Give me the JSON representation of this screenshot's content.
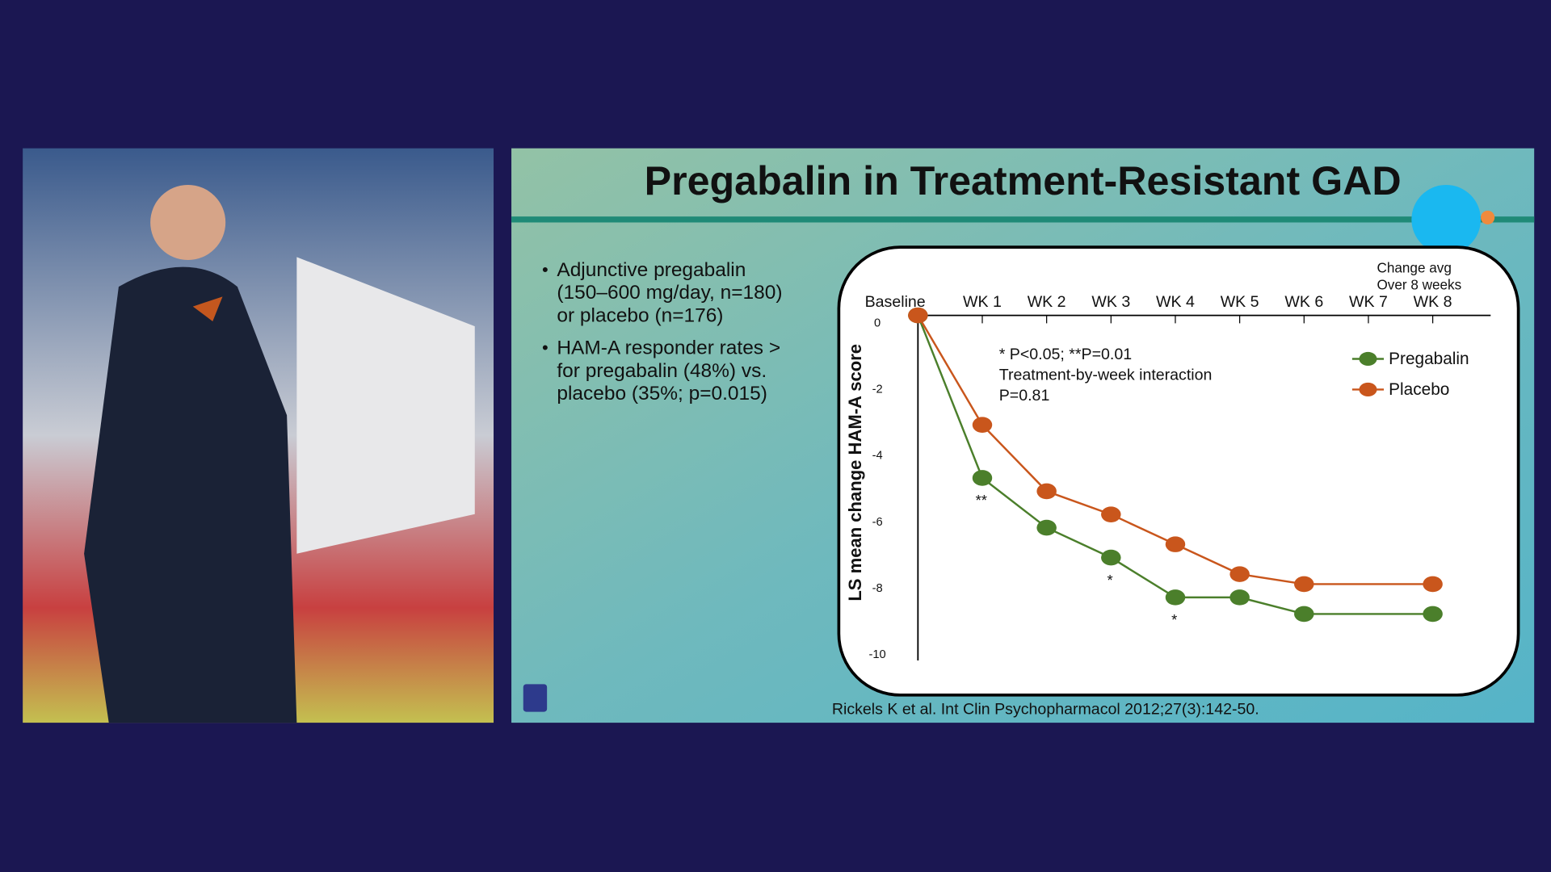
{
  "slide": {
    "title": "Pregabalin in Treatment-Resistant GAD",
    "bullets": [
      [
        "Adjunctive pregabalin",
        "(150–600 mg/day, n=180)",
        "or placebo (n=176)"
      ],
      [
        "HAM-A responder rates >",
        "for pregabalin (48%) vs.",
        "placebo (35%; p=0.015)"
      ]
    ],
    "citation": "Rickels K et al. Int Clin Psychopharmacol 2012;27(3):142-50."
  },
  "chart_data": {
    "type": "line",
    "y_label": "LS mean change HAM-A score",
    "x": [
      0,
      1,
      2,
      3,
      4,
      5,
      6,
      8
    ],
    "xlim": [
      0,
      8.9
    ],
    "xticks": [
      {
        "value": 0,
        "label": "Baseline"
      },
      {
        "value": 1,
        "label": "WK 1"
      },
      {
        "value": 2,
        "label": "WK 2"
      },
      {
        "value": 3,
        "label": "WK 3"
      },
      {
        "value": 4,
        "label": "WK 4"
      },
      {
        "value": 5,
        "label": "WK 5"
      },
      {
        "value": 6,
        "label": "WK 6"
      },
      {
        "value": 7,
        "label": "WK 7"
      },
      {
        "value": 8,
        "label": "WK 8"
      }
    ],
    "ylim": [
      -10.4,
      0
    ],
    "yticks": [
      0,
      -2,
      -4,
      -6,
      -8,
      -10
    ],
    "x_note": [
      "Change avg",
      "Over 8 weeks"
    ],
    "annotations": [
      "* P<0.05; **P=0.01",
      "Treatment-by-week interaction",
      "P=0.81"
    ],
    "legend": "upper right",
    "series": [
      {
        "name": "Pregabalin",
        "color": "#4b7f2b",
        "values": [
          0,
          -4.9,
          -6.4,
          -7.3,
          -8.5,
          -8.5,
          -9.0,
          -9.0
        ],
        "significance_marks": [
          null,
          "**",
          null,
          "*",
          "*",
          null,
          null,
          null
        ]
      },
      {
        "name": "Placebo",
        "color": "#c9561c",
        "values": [
          0,
          -3.3,
          -5.3,
          -6.0,
          -6.9,
          -7.8,
          -8.1,
          -8.1
        ]
      }
    ]
  }
}
